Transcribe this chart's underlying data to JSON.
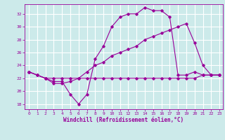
{
  "xlabel": "Windchill (Refroidissement éolien,°C)",
  "bg_color": "#cceaea",
  "grid_color": "#ffffff",
  "line_color": "#990099",
  "xlim": [
    -0.5,
    23.4
  ],
  "ylim": [
    17.2,
    33.5
  ],
  "yticks": [
    18,
    20,
    22,
    24,
    26,
    28,
    30,
    32
  ],
  "xticks": [
    0,
    1,
    2,
    3,
    4,
    5,
    6,
    7,
    8,
    9,
    10,
    11,
    12,
    13,
    14,
    15,
    16,
    17,
    18,
    19,
    20,
    21,
    22,
    23
  ],
  "line1_x": [
    0,
    1,
    2,
    3,
    4,
    5,
    6,
    7,
    8,
    9,
    10,
    11,
    12,
    13,
    14,
    15,
    16,
    17,
    18,
    19,
    20,
    21,
    22,
    23
  ],
  "line1_y": [
    23,
    22.5,
    22,
    21.5,
    21.5,
    19.5,
    18,
    19.5,
    25,
    27,
    30,
    31.5,
    32,
    32,
    33,
    32.5,
    32.5,
    31.5,
    22.5,
    22.5,
    23,
    22.5,
    22.5,
    22.5
  ],
  "line2_x": [
    0,
    1,
    2,
    3,
    4,
    5,
    6,
    7,
    8,
    9,
    10,
    11,
    12,
    13,
    14,
    15,
    16,
    17,
    18,
    19,
    20,
    21,
    22,
    23
  ],
  "line2_y": [
    23,
    22.5,
    22,
    22,
    22,
    22,
    22,
    22,
    22,
    22,
    22,
    22,
    22,
    22,
    22,
    22,
    22,
    22,
    22,
    22,
    22,
    22.5,
    22.5,
    22.5
  ],
  "line3_x": [
    0,
    1,
    2,
    3,
    4,
    5,
    6,
    7,
    8,
    9,
    10,
    11,
    12,
    13,
    14,
    15,
    16,
    17,
    18,
    19,
    20,
    21,
    22,
    23
  ],
  "line3_y": [
    23,
    22.5,
    22,
    21.2,
    21.2,
    21.5,
    22,
    23,
    24,
    24.5,
    25.5,
    26,
    26.5,
    27,
    28,
    28.5,
    29,
    29.5,
    30,
    30.5,
    27.5,
    24.0,
    22.5,
    22.5
  ]
}
